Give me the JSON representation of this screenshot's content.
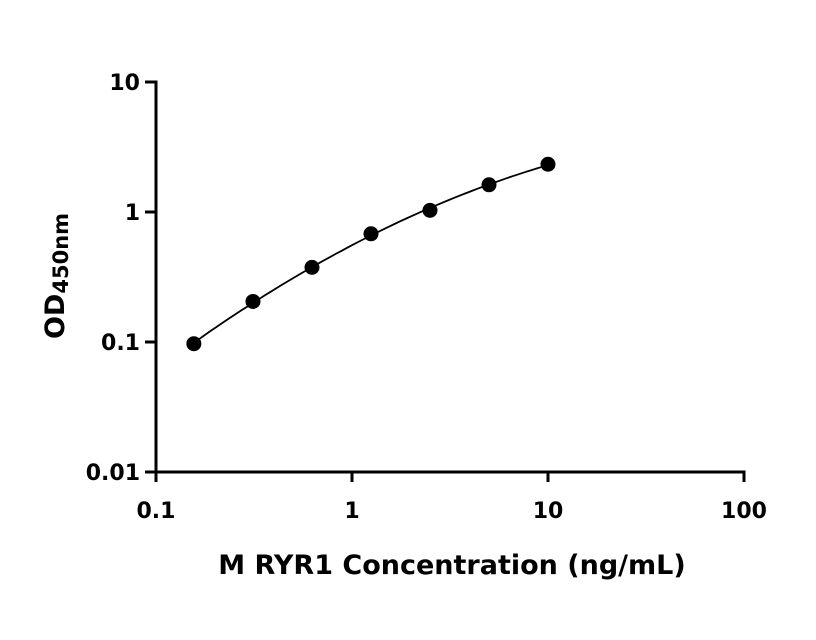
{
  "chart_data": {
    "type": "scatter",
    "xlabel": "M RYR1 Concentration (ng/mL)",
    "ylabel_main": "OD",
    "ylabel_sub": "450nm",
    "xscale": "log",
    "yscale": "log",
    "xlim": [
      0.1,
      100
    ],
    "ylim": [
      0.01,
      10
    ],
    "xticks": [
      0.1,
      1,
      10,
      100
    ],
    "xtick_labels": [
      "0.1",
      "1",
      "10",
      "100"
    ],
    "yticks": [
      0.01,
      0.1,
      1,
      10
    ],
    "ytick_labels": [
      "0.01",
      "0.1",
      "1",
      "10"
    ],
    "grid": false,
    "legend": "none",
    "point_color": "#000000",
    "series": [
      {
        "x": [
          0.156,
          0.3125,
          0.625,
          1.25,
          2.5,
          5,
          10
        ],
        "y": [
          0.097,
          0.205,
          0.375,
          0.68,
          1.03,
          1.62,
          2.33
        ]
      }
    ],
    "fit_curve": true
  }
}
